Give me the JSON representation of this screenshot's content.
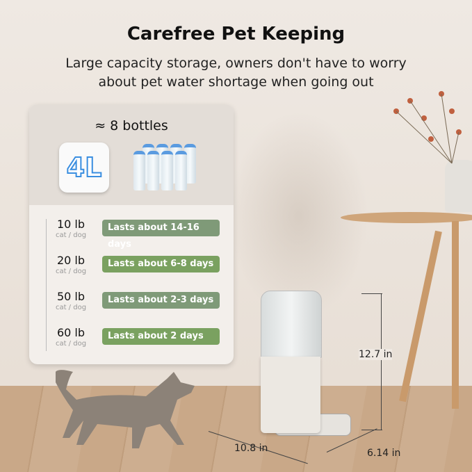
{
  "header": {
    "title": "Carefree Pet Keeping",
    "subtitle_line1": "Large capacity storage, owners don't have to worry",
    "subtitle_line2": "about pet water shortage when going out"
  },
  "capacity": {
    "bottles_label": "≈ 8 bottles",
    "volume": "4L"
  },
  "rows": [
    {
      "weight": "10 lb",
      "pet": "cat / dog",
      "duration": "Lasts about 14-16 days",
      "color": "#7f9a78"
    },
    {
      "weight": "20 lb",
      "pet": "cat / dog",
      "duration": "Lasts about 6-8 days",
      "color": "#7aa160"
    },
    {
      "weight": "50 lb",
      "pet": "cat / dog",
      "duration": "Lasts about 2-3 days",
      "color": "#7f9a78"
    },
    {
      "weight": "60 lb",
      "pet": "cat / dog",
      "duration": "Lasts about  2  days",
      "color": "#7aa160"
    }
  ],
  "dimensions": {
    "height": "12.7 in",
    "width": "10.8 in",
    "depth": "6.14 in"
  }
}
